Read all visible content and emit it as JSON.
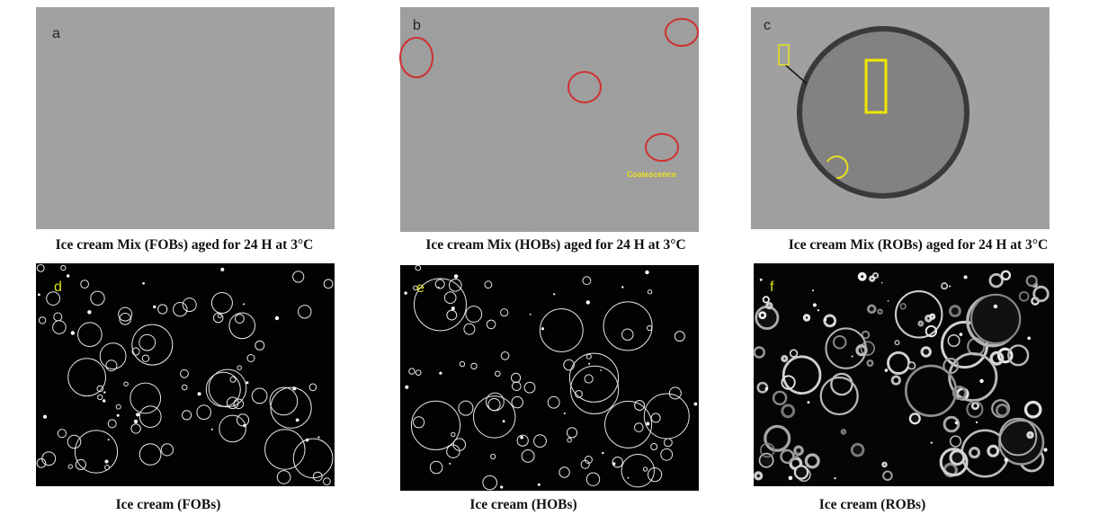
{
  "panels": [
    {
      "label": "a",
      "caption": "Ice cream Mix (FOBs) aged for 24 H at 3°C"
    },
    {
      "label": "b",
      "caption": "Ice cream Mix (HOBs) aged for 24 H at 3°C",
      "annotation": "Coalescence"
    },
    {
      "label": "c",
      "caption": "Ice cream Mix (ROBs) aged for 24 H at 3°C"
    },
    {
      "label": "d",
      "caption": "Ice cream (FOBs)"
    },
    {
      "label": "e",
      "caption": "Ice cream (HOBs)"
    },
    {
      "label": "f",
      "caption": "Ice cream (ROBs)"
    }
  ]
}
